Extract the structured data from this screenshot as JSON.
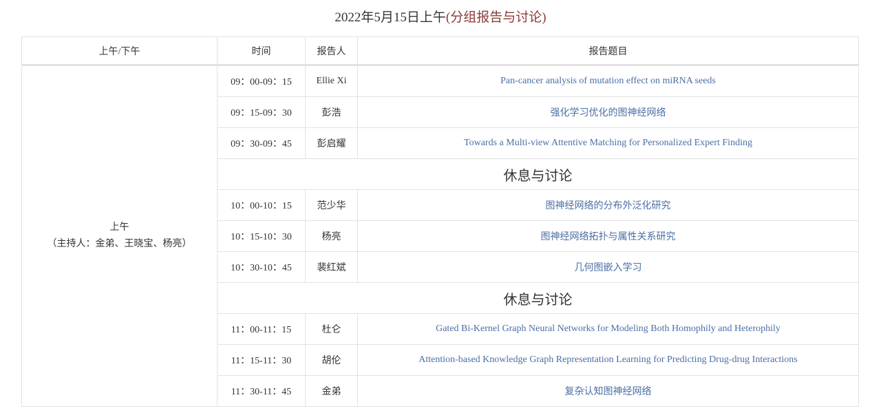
{
  "title": {
    "prefix": "2022年5月15日上午",
    "highlight": "(分组报告与讨论)",
    "highlight_color": "#8b3a36"
  },
  "link_color": "#4a6fa5",
  "table": {
    "headers": [
      "上午/下午",
      "时间",
      "报告人",
      "报告题目"
    ],
    "session": {
      "label": "上午",
      "hosts": "（主持人：金弟、王晓宝、杨亮）"
    },
    "rows": [
      {
        "time": "09：00-09：15",
        "speaker": "Ellie Xi",
        "topic": "Pan-cancer analysis of mutation effect on miRNA seeds"
      },
      {
        "time": "09：15-09：30",
        "speaker": "彭浩",
        "topic": "强化学习优化的图神经网络"
      },
      {
        "time": "09：30-09：45",
        "speaker": "彭启耀",
        "topic": "Towards a Multi-view Attentive Matching for Personalized Expert Finding"
      },
      {
        "break": "休息与讨论"
      },
      {
        "time": "10：00-10：15",
        "speaker": "范少华",
        "topic": "图神经网络的分布外泛化研究"
      },
      {
        "time": "10：15-10：30",
        "speaker": "杨亮",
        "topic": "图神经网络拓扑与属性关系研究"
      },
      {
        "time": "10：30-10：45",
        "speaker": "裴红斌",
        "topic": "几何图嵌入学习"
      },
      {
        "break": "休息与讨论"
      },
      {
        "time": "11：00-11：15",
        "speaker": "杜仑",
        "topic": "Gated Bi-Kernel Graph Neural Networks for Modeling Both Homophily and Heterophily"
      },
      {
        "time": "11：15-11：30",
        "speaker": "胡伦",
        "topic": "Attention-based Knowledge Graph Representation Learning for Predicting Drug-drug Interactions"
      },
      {
        "time": "11：30-11：45",
        "speaker": "金弟",
        "topic": "复杂认知图神经网络"
      }
    ]
  }
}
